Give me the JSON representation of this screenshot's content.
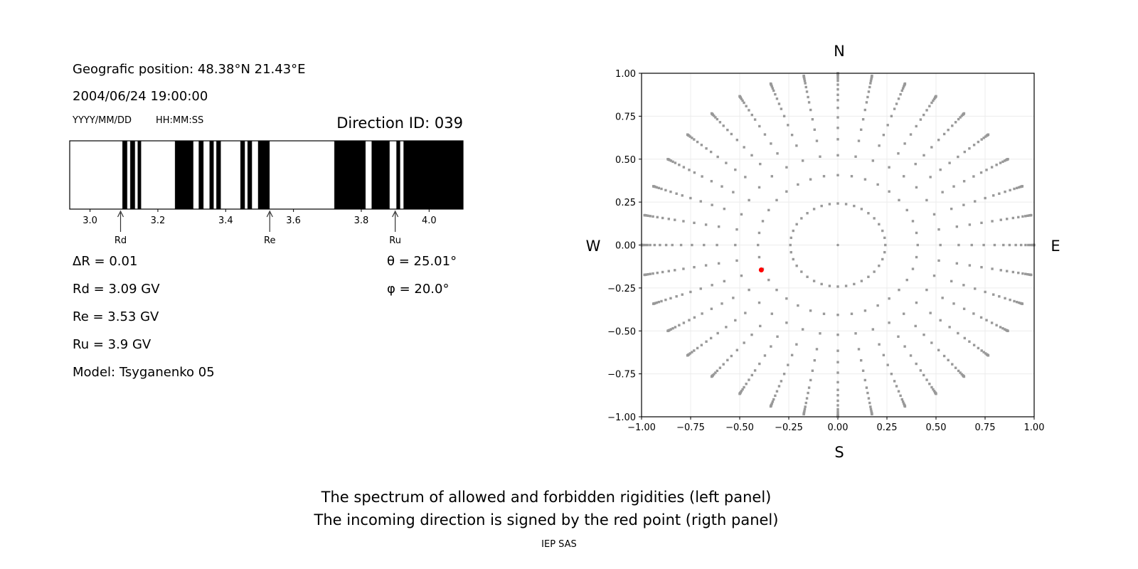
{
  "info": {
    "position": "Geografic position: 48.38°N 21.43°E",
    "datetime": "2004/06/24 19:00:00",
    "date_format": "YYYY/MM/DD",
    "time_format": "HH:MM:SS",
    "direction_id": "Direction ID: 039",
    "delta_r": "ΔR = 0.01",
    "rd": "Rd = 3.09 GV",
    "re": "Re = 3.53 GV",
    "ru": "Ru = 3.9 GV",
    "model": "Model: Tsyganenko 05",
    "theta": "θ = 25.01°",
    "phi": "φ = 20.0°"
  },
  "captions": {
    "line1": "The spectrum of allowed and forbidden rigidities (left panel)",
    "line2": "The incoming direction is signed by the red point (rigth panel)",
    "credit": "IEP SAS"
  },
  "chart_data": [
    {
      "type": "bar",
      "description_of_marks": "forbidden rigidity bands (black) on allowed (white) background",
      "xlim": [
        2.94,
        4.1
      ],
      "xticks": [
        "3.0",
        "3.2",
        "3.4",
        "3.6",
        "3.8",
        "4.0"
      ],
      "forbidden_bands": [
        [
          3.095,
          3.11
        ],
        [
          3.118,
          3.133
        ],
        [
          3.14,
          3.151
        ],
        [
          3.25,
          3.305
        ],
        [
          3.32,
          3.335
        ],
        [
          3.352,
          3.365
        ],
        [
          3.372,
          3.386
        ],
        [
          3.443,
          3.457
        ],
        [
          3.464,
          3.478
        ],
        [
          3.495,
          3.53
        ],
        [
          3.72,
          3.813
        ],
        [
          3.83,
          3.884
        ],
        [
          3.903,
          3.915
        ],
        [
          3.924,
          4.1
        ]
      ],
      "markers": [
        {
          "label": "Rd",
          "value": 3.09
        },
        {
          "label": "Re",
          "value": 3.53
        },
        {
          "label": "Ru",
          "value": 3.9
        }
      ],
      "colors": {
        "forbidden": "#000000",
        "allowed": "#ffffff"
      }
    },
    {
      "type": "scatter",
      "xlim": [
        -1,
        1
      ],
      "ylim": [
        -1,
        1
      ],
      "grid": true,
      "xticks": [
        "−1.00",
        "−0.75",
        "−0.50",
        "−0.25",
        "0.00",
        "0.25",
        "0.50",
        "0.75",
        "1.00"
      ],
      "yticks": [
        "−1.00",
        "−0.75",
        "−0.50",
        "−0.25",
        "0.00",
        "0.25",
        "0.50",
        "0.75",
        "1.00"
      ],
      "directions": {
        "north": "N",
        "south": "S",
        "west": "W",
        "east": "E"
      },
      "grid_zenith_deg": [
        14,
        24,
        31.5,
        38,
        43,
        48,
        53,
        57.5,
        61,
        65,
        69,
        73,
        76,
        79,
        82,
        84,
        86,
        88,
        90
      ],
      "grid_azimuth_step_deg": 10,
      "highlight_point": {
        "x": -0.39,
        "y": -0.145
      },
      "colors": {
        "grid_points": "#999999",
        "highlight": "#ff0000"
      }
    }
  ]
}
